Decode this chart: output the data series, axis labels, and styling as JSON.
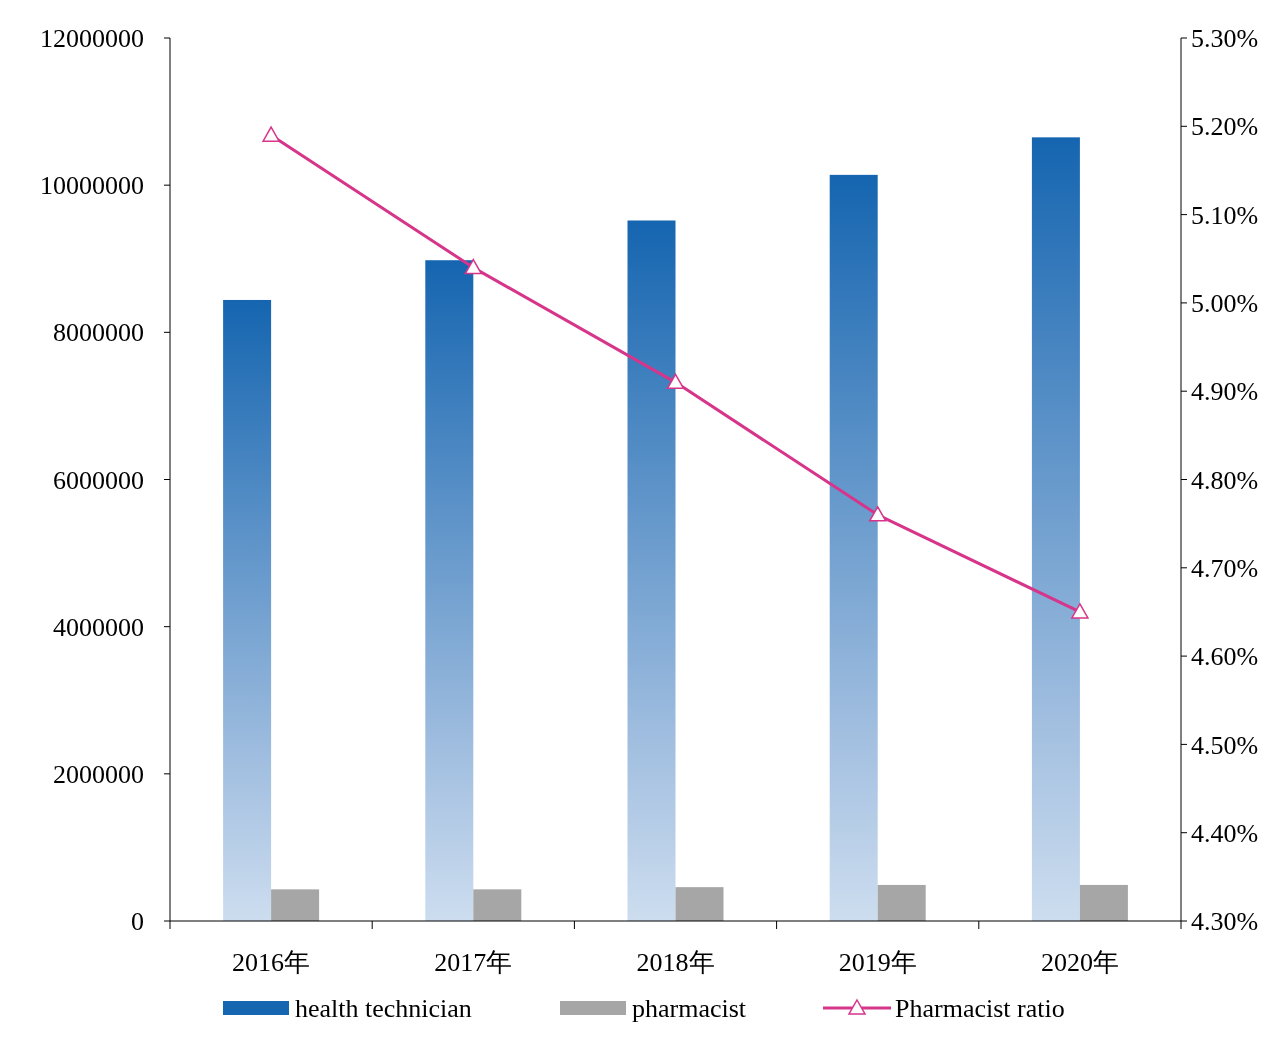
{
  "chart_data": {
    "type": "bar",
    "categories": [
      "2016年",
      "2017年",
      "2018年",
      "2019年",
      "2020年"
    ],
    "series": [
      {
        "name": "health technician",
        "color": "#1565b0",
        "values": [
          8440000,
          8980000,
          9520000,
          10140000,
          10650000
        ]
      },
      {
        "name": "pharmacist",
        "color": "#a6a6a6",
        "values": [
          430000,
          430000,
          460000,
          490000,
          490000
        ]
      },
      {
        "name": "Pharmacist ratio",
        "type": "line",
        "axis": "y2",
        "color": "#d6358a",
        "marker": "triangle",
        "values": [
          5.19,
          5.04,
          4.91,
          4.76,
          4.65
        ]
      }
    ],
    "ylim": [
      0,
      12000000
    ],
    "yticks": [
      0,
      2000000,
      4000000,
      6000000,
      8000000,
      10000000,
      12000000
    ],
    "y2lim": [
      4.3,
      5.3
    ],
    "y2ticks": [
      {
        "value": 4.3,
        "label": "4.30%"
      },
      {
        "value": 4.4,
        "label": "4.40%"
      },
      {
        "value": 4.5,
        "label": "4.50%"
      },
      {
        "value": 4.6,
        "label": "4.60%"
      },
      {
        "value": 4.7,
        "label": "4.70%"
      },
      {
        "value": 4.8,
        "label": "4.80%"
      },
      {
        "value": 4.9,
        "label": "4.90%"
      },
      {
        "value": 5.0,
        "label": "5.00%"
      },
      {
        "value": 5.1,
        "label": "5.10%"
      },
      {
        "value": 5.2,
        "label": "5.20%"
      },
      {
        "value": 5.3,
        "label": "5.30%"
      }
    ],
    "legend": "bottom",
    "grid": false
  }
}
